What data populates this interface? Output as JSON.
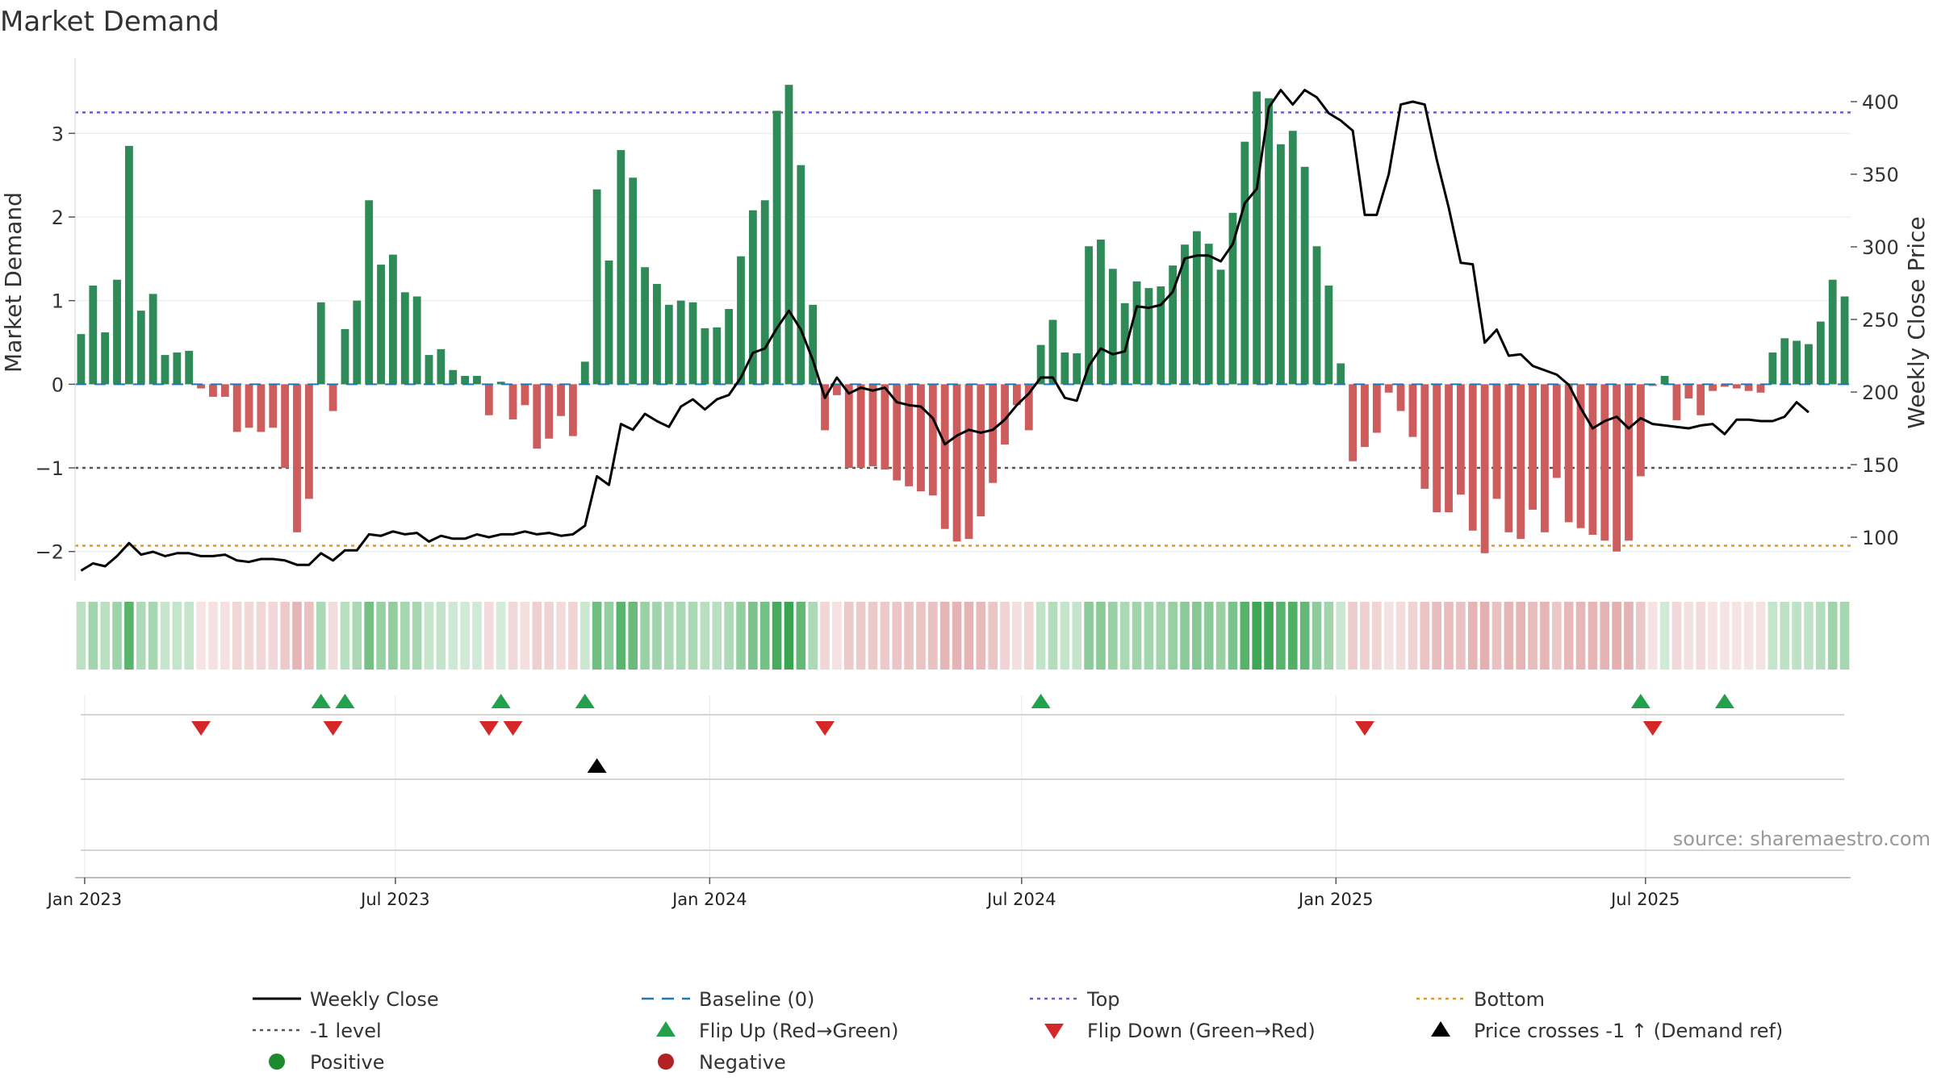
{
  "chart_data": {
    "type": "bar",
    "title": "Market Demand",
    "ylabel": "Market Demand",
    "y2label": "Weekly Close Price",
    "ylim": [
      -2.35,
      3.9
    ],
    "y2lim": [
      70,
      430
    ],
    "yticks": [
      -2,
      -1,
      0,
      1,
      2,
      3
    ],
    "yticklabels": [
      "−2",
      "−1",
      "0",
      "1",
      "2",
      "3"
    ],
    "y2ticks": [
      100,
      150,
      200,
      250,
      300,
      350,
      400
    ],
    "y2ticklabels": [
      "100",
      "150",
      "200",
      "250",
      "300",
      "350",
      "400"
    ],
    "top_level": 3.25,
    "bottom_level": -1.93,
    "minus1_level": -1.0,
    "x_start": "2022-12-30",
    "x_step_days": 7,
    "xticks": [
      {
        "label": "Jan 2023",
        "index": 0.3
      },
      {
        "label": "Jul 2023",
        "index": 26.2
      },
      {
        "label": "Jan 2024",
        "index": 52.4
      },
      {
        "label": "Jul 2024",
        "index": 78.4
      },
      {
        "label": "Jan 2025",
        "index": 104.6
      },
      {
        "label": "Jul 2025",
        "index": 130.4
      }
    ],
    "demand": [
      0.6,
      1.18,
      0.62,
      1.25,
      2.85,
      0.88,
      1.08,
      0.35,
      0.38,
      0.4,
      -0.05,
      -0.15,
      -0.15,
      -0.57,
      -0.52,
      -0.57,
      -0.52,
      -1.0,
      -1.77,
      -1.37,
      0.98,
      -0.32,
      0.66,
      1.0,
      2.2,
      1.43,
      1.55,
      1.1,
      1.05,
      0.35,
      0.42,
      0.17,
      0.1,
      0.1,
      -0.37,
      0.03,
      -0.42,
      -0.25,
      -0.77,
      -0.65,
      -0.38,
      -0.62,
      0.27,
      2.33,
      1.48,
      2.8,
      2.47,
      1.4,
      1.2,
      0.95,
      1.0,
      0.98,
      0.67,
      0.68,
      0.9,
      1.53,
      2.08,
      2.2,
      3.27,
      3.58,
      2.62,
      0.95,
      -0.55,
      -0.13,
      -1.0,
      -1.0,
      -0.98,
      -1.02,
      -1.15,
      -1.22,
      -1.28,
      -1.33,
      -1.73,
      -1.88,
      -1.85,
      -1.58,
      -1.18,
      -0.72,
      -0.25,
      -0.55,
      0.47,
      0.77,
      0.38,
      0.37,
      1.65,
      1.73,
      1.38,
      0.97,
      1.23,
      1.15,
      1.17,
      1.42,
      1.67,
      1.83,
      1.68,
      1.37,
      2.05,
      2.9,
      3.5,
      3.42,
      2.87,
      3.03,
      2.6,
      1.65,
      1.18,
      0.25,
      -0.92,
      -0.75,
      -0.58,
      -0.1,
      -0.32,
      -0.63,
      -1.25,
      -1.53,
      -1.53,
      -1.32,
      -1.75,
      -2.02,
      -1.37,
      -1.77,
      -1.85,
      -1.5,
      -1.77,
      -1.12,
      -1.65,
      -1.72,
      -1.8,
      -1.87,
      -2.0,
      -1.87,
      -1.1,
      -0.02,
      0.1,
      -0.43,
      -0.17,
      -0.37,
      -0.08,
      -0.03,
      -0.05,
      -0.08,
      -0.1,
      0.38,
      0.55,
      0.52,
      0.48,
      0.75,
      1.25,
      1.05
    ],
    "close": [
      77,
      82,
      80,
      87,
      96,
      88,
      90,
      87,
      89,
      89,
      87,
      87,
      88,
      84,
      83,
      85,
      85,
      84,
      81,
      81,
      89,
      84,
      91,
      91,
      102,
      101,
      104,
      102,
      103,
      97,
      101,
      99,
      99,
      102,
      100,
      102,
      102,
      104,
      102,
      103,
      101,
      102,
      108,
      142,
      136,
      178,
      174,
      185,
      180,
      176,
      190,
      195,
      188,
      195,
      198,
      210,
      227,
      230,
      244,
      256,
      243,
      222,
      196,
      210,
      199,
      203,
      201,
      203,
      193,
      191,
      190,
      182,
      164,
      170,
      174,
      172,
      174,
      181,
      191,
      199,
      210,
      210,
      196,
      194,
      218,
      230,
      226,
      228,
      259,
      258,
      260,
      269,
      292,
      294,
      294,
      290,
      302,
      330,
      340,
      396,
      408,
      398,
      408,
      403,
      392,
      387,
      380,
      322,
      322,
      350,
      398,
      400,
      398,
      360,
      327,
      289,
      288,
      234,
      243,
      225,
      226,
      218,
      215,
      212,
      205,
      189,
      175,
      180,
      183,
      175,
      182,
      178,
      177,
      176,
      175,
      177,
      178,
      171,
      181,
      181,
      180,
      180,
      183,
      193,
      186
    ],
    "flip_up": [
      20,
      22,
      35,
      42,
      80,
      130,
      137
    ],
    "flip_down": [
      10,
      21,
      34,
      36,
      62,
      107,
      131
    ],
    "price_cross": [
      43
    ],
    "source": "source: sharemaestro.com",
    "legend": [
      {
        "label": "Weekly Close",
        "kind": "line",
        "color": "#000000"
      },
      {
        "label": "Baseline (0)",
        "kind": "dash",
        "color": "#1f77b4"
      },
      {
        "label": "Top",
        "kind": "dot",
        "color": "#6a5acd"
      },
      {
        "label": "Bottom",
        "kind": "dot",
        "color": "#e69520"
      },
      {
        "label": "-1 level",
        "kind": "dot",
        "color": "#555555"
      },
      {
        "label": "Flip Up (Red→Green)",
        "kind": "tri-up",
        "color": "#22a04b"
      },
      {
        "label": "Flip Down (Green→Red)",
        "kind": "tri-down",
        "color": "#d62728"
      },
      {
        "label": "Price crosses -1 ↑ (Demand ref)",
        "kind": "tri-up",
        "color": "#000000"
      },
      {
        "label": "Positive",
        "kind": "circle",
        "color": "#1e8a2e"
      },
      {
        "label": "Negative",
        "kind": "circle",
        "color": "#b22222"
      }
    ],
    "colors": {
      "positive_bar": "#2e8b57",
      "negative_bar": "#cd5c5c",
      "close_line": "#000000",
      "baseline": "#1f77b4",
      "top": "#6a5acd",
      "bottom": "#e69520",
      "minus1": "#555555",
      "flip_up": "#22a04b",
      "flip_down": "#d62728",
      "price_cross": "#000000"
    }
  }
}
